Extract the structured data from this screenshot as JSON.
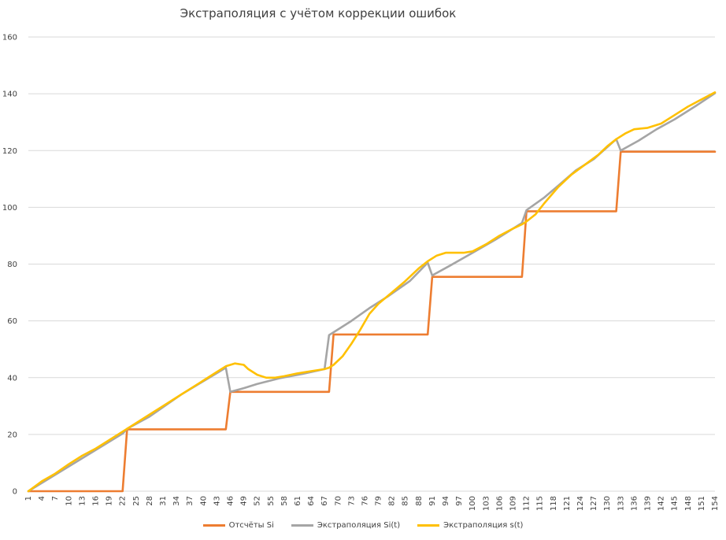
{
  "chart_data": {
    "type": "line",
    "title": "Экстраполяция с учётом коррекции ошибок",
    "xlabel": "",
    "ylabel": "",
    "xlim": [
      1,
      154
    ],
    "ylim": [
      0,
      160
    ],
    "y_ticks": [
      0,
      20,
      40,
      60,
      80,
      100,
      120,
      140,
      160
    ],
    "x_tick_labels": [
      "1",
      "4",
      "7",
      "10",
      "13",
      "16",
      "19",
      "22",
      "25",
      "28",
      "31",
      "34",
      "37",
      "40",
      "43",
      "46",
      "49",
      "52",
      "55",
      "58",
      "61",
      "64",
      "67",
      "70",
      "73",
      "76",
      "79",
      "82",
      "85",
      "88",
      "91",
      "94",
      "97",
      "100",
      "103",
      "106",
      "109",
      "112",
      "115",
      "118",
      "121",
      "124",
      "127",
      "130",
      "133",
      "136",
      "139",
      "142",
      "145",
      "148",
      "151",
      "154"
    ],
    "grid": "horizontal",
    "legend_position": "bottom",
    "series": [
      {
        "name": "Отсчёты Si",
        "color": "#ED7D31",
        "points": [
          [
            1,
            0
          ],
          [
            22,
            0
          ],
          [
            23,
            21.8
          ],
          [
            45,
            21.8
          ],
          [
            46,
            35
          ],
          [
            68,
            35
          ],
          [
            69,
            55.2
          ],
          [
            90,
            55.2
          ],
          [
            91,
            75.5
          ],
          [
            111,
            75.5
          ],
          [
            112,
            98.6
          ],
          [
            132,
            98.6
          ],
          [
            133,
            119.6
          ],
          [
            154,
            119.6
          ]
        ]
      },
      {
        "name": "Экстраполяция Si(t)",
        "color": "#A5A5A5",
        "points": [
          [
            1,
            0
          ],
          [
            22,
            20.3
          ],
          [
            23,
            22
          ],
          [
            28,
            26.3
          ],
          [
            35,
            34
          ],
          [
            45,
            43.5
          ],
          [
            46,
            35
          ],
          [
            49,
            36.3
          ],
          [
            52,
            37.8
          ],
          [
            57,
            39.8
          ],
          [
            62,
            41.3
          ],
          [
            67,
            43
          ],
          [
            68,
            55
          ],
          [
            69,
            56
          ],
          [
            73,
            60
          ],
          [
            77,
            64.5
          ],
          [
            81,
            68.5
          ],
          [
            86,
            74
          ],
          [
            90,
            80.5
          ],
          [
            91,
            76
          ],
          [
            95,
            79.5
          ],
          [
            100,
            84
          ],
          [
            105,
            88.5
          ],
          [
            108,
            91.5
          ],
          [
            111,
            94.5
          ],
          [
            112,
            99
          ],
          [
            116,
            103.5
          ],
          [
            119,
            107.5
          ],
          [
            123,
            113
          ],
          [
            127,
            117
          ],
          [
            132,
            124
          ],
          [
            133,
            120
          ],
          [
            137,
            123.5
          ],
          [
            141,
            127.5
          ],
          [
            145,
            131
          ],
          [
            150,
            136
          ],
          [
            154,
            140.2
          ]
        ]
      },
      {
        "name": "Экстраполяция s(t)",
        "color": "#FFC000",
        "points": [
          [
            1,
            0
          ],
          [
            4,
            3.5
          ],
          [
            7,
            6.2
          ],
          [
            10,
            9.5
          ],
          [
            13,
            12.5
          ],
          [
            16,
            15
          ],
          [
            19,
            18
          ],
          [
            22,
            21
          ],
          [
            25,
            24
          ],
          [
            28,
            27
          ],
          [
            31,
            30
          ],
          [
            34,
            33
          ],
          [
            37,
            36
          ],
          [
            40,
            39
          ],
          [
            43,
            42
          ],
          [
            45,
            44
          ],
          [
            47,
            45
          ],
          [
            49,
            44.5
          ],
          [
            50,
            43
          ],
          [
            52,
            41
          ],
          [
            54,
            40
          ],
          [
            56,
            40
          ],
          [
            58,
            40.5
          ],
          [
            61,
            41.5
          ],
          [
            64,
            42.3
          ],
          [
            67,
            43
          ],
          [
            68,
            43.5
          ],
          [
            69,
            44.5
          ],
          [
            71,
            47.5
          ],
          [
            73,
            52
          ],
          [
            75,
            57
          ],
          [
            77,
            62.5
          ],
          [
            79,
            66
          ],
          [
            82,
            70
          ],
          [
            85,
            74
          ],
          [
            88,
            78.5
          ],
          [
            90,
            81
          ],
          [
            92,
            83
          ],
          [
            94,
            84
          ],
          [
            96,
            84
          ],
          [
            98,
            84
          ],
          [
            100,
            84.5
          ],
          [
            103,
            87
          ],
          [
            106,
            90
          ],
          [
            109,
            92.5
          ],
          [
            111,
            94
          ],
          [
            112,
            95
          ],
          [
            114,
            97.5
          ],
          [
            116,
            101.5
          ],
          [
            119,
            107
          ],
          [
            122,
            111.5
          ],
          [
            125,
            115
          ],
          [
            128,
            118.5
          ],
          [
            130,
            121.5
          ],
          [
            132,
            124
          ],
          [
            134,
            126
          ],
          [
            136,
            127.5
          ],
          [
            139,
            128
          ],
          [
            142,
            129.5
          ],
          [
            145,
            132.5
          ],
          [
            148,
            135.5
          ],
          [
            151,
            138
          ],
          [
            154,
            140.5
          ]
        ]
      }
    ]
  }
}
